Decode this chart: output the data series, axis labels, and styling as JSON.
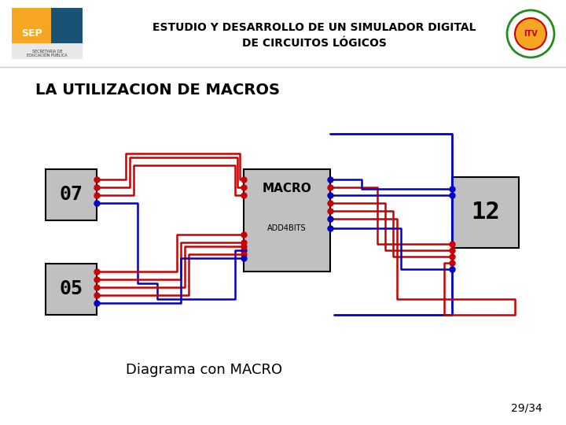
{
  "title_line1": "ESTUDIO Y DESARROLLO DE UN SIMULADOR DIGITAL",
  "title_line2": "DE CIRCUITOS LÓGICOS",
  "subtitle": "LA UTILIZACION DE MACROS",
  "diagram_label": "Diagrama con MACRO",
  "page_num": "29/34",
  "macro_label": "MACRO",
  "macro_sublabel": "ADD4BITS",
  "display_07": "07",
  "display_05": "05",
  "display_12": "12",
  "bg_color": "#ffffff",
  "header_bg": "#ffffff",
  "title_color": "#000000",
  "subtitle_color": "#000000",
  "red_color": "#cc0000",
  "blue_color": "#0000cc",
  "gray_color": "#c0c0c0",
  "dark_gray": "#808080",
  "black": "#000000"
}
